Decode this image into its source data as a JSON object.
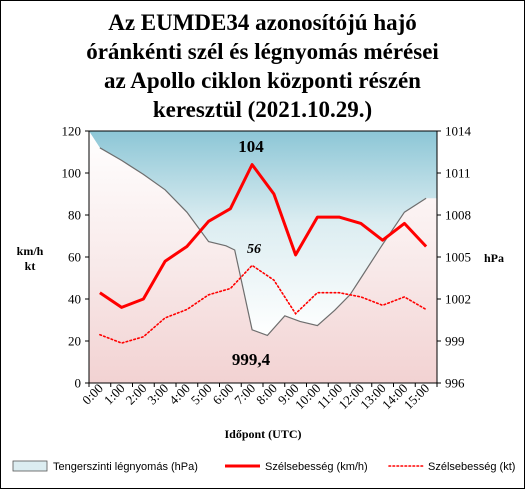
{
  "chart_data": {
    "type": "line",
    "title": [
      "Az EUMDE34 azonosítójú  hajó",
      "óránkénti szél és légnyomás mérései",
      "az Apollo ciklon központi részén",
      "keresztül (2021.10.29.)"
    ],
    "xlabel": "Időpont  (UTC)",
    "ylabel_left": [
      "km/h",
      "kt"
    ],
    "ylabel_right": "hPa",
    "ylim_left": [
      0,
      120
    ],
    "ylim_right": [
      996,
      1014
    ],
    "yticks_left": [
      "0",
      "20",
      "40",
      "60",
      "80",
      "100",
      "120"
    ],
    "yticks_right": [
      "996",
      "999",
      "1002",
      "1005",
      "1008",
      "1011",
      "1014"
    ],
    "categories": [
      "0:00",
      "1:00",
      "2:00",
      "3:00",
      "4:00",
      "5:00",
      "6:00",
      "7:00",
      "8:00",
      "9:00",
      "10:00",
      "11:00",
      "12:00",
      "13:00",
      "14:00",
      "15:00"
    ],
    "series": [
      {
        "name": "Tengerszinti légnyomás (hPa)",
        "axis": "right",
        "style": "area",
        "x": [
          0,
          1,
          2,
          3,
          4,
          5,
          5.8,
          6.2,
          7,
          7.7,
          8.5,
          9.2,
          10,
          10.8,
          11.5,
          12,
          13,
          14,
          15
        ],
        "values": [
          1012.8,
          1011.9,
          1010.9,
          1009.8,
          1008.2,
          1006.1,
          1005.8,
          1005.5,
          999.8,
          999.4,
          1000.8,
          1000.4,
          1000.1,
          1001.2,
          1002.3,
          1003.5,
          1005.9,
          1008.2,
          1009.2
        ]
      },
      {
        "name": "Szélsebesség (km/h)",
        "axis": "left",
        "style": "solid",
        "x": [
          0,
          1,
          2,
          3,
          4,
          5,
          6,
          7,
          8,
          9,
          10,
          11,
          12,
          13,
          14,
          15
        ],
        "values": [
          43,
          36,
          40,
          58,
          65,
          77,
          83,
          104,
          90,
          61,
          79,
          79,
          76,
          68,
          76,
          65
        ]
      },
      {
        "name": "Szélsebesség (kt)",
        "axis": "left",
        "style": "dotted",
        "x": [
          0,
          1,
          2,
          3,
          4,
          5,
          6,
          7,
          8,
          9,
          10,
          11,
          12,
          13,
          14,
          15
        ],
        "values": [
          23,
          19,
          22,
          31,
          35,
          42,
          45,
          56,
          49,
          33,
          43,
          43,
          41,
          37,
          41,
          35
        ]
      }
    ],
    "annotations": [
      "104",
      "56",
      "999,4"
    ],
    "colors": {
      "wind_kmh": "#ff0000",
      "wind_kt": "#ff0000",
      "pressure_fill_top": "#8fc9d9",
      "pressure_fill_bottom": "#f6dede",
      "pressure_line": "#6e6e6e"
    },
    "grid": false,
    "legend_position": "bottom"
  }
}
